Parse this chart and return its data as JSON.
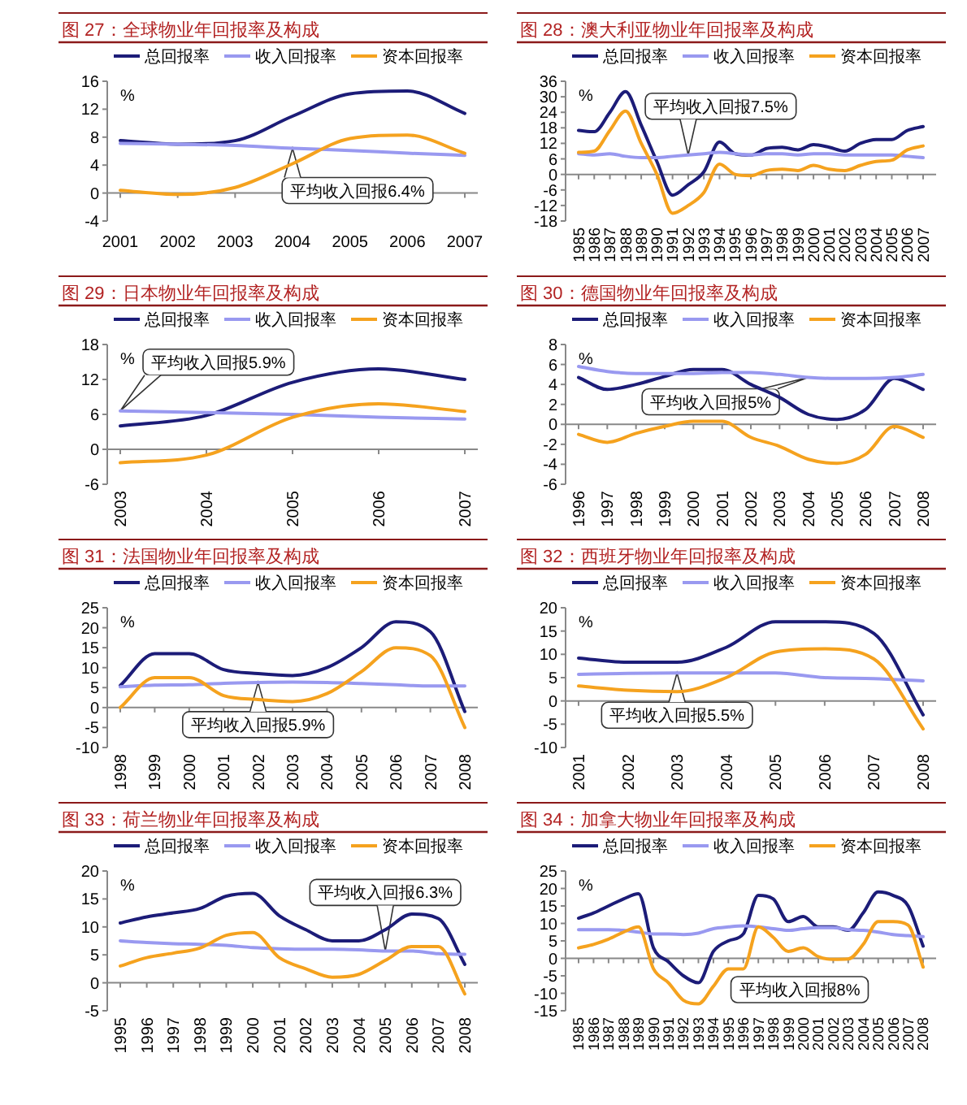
{
  "chart_data": [
    {
      "type": "line",
      "title": "图 27：全球物业年回报率及构成",
      "ylabel": "%",
      "categories": [
        "2001",
        "2002",
        "2003",
        "2004",
        "2005",
        "2006",
        "2007"
      ],
      "series": [
        {
          "name": "总回报率",
          "color": "#1c1c78",
          "values": [
            7.5,
            7.0,
            7.5,
            11,
            14.2,
            14.6,
            11.4
          ]
        },
        {
          "name": "收入回报率",
          "color": "#9999f0",
          "values": [
            7.1,
            7.0,
            6.8,
            6.4,
            6.1,
            5.7,
            5.4
          ]
        },
        {
          "name": "资本回报率",
          "color": "#f5a21e",
          "values": [
            0.4,
            -0.2,
            0.8,
            4.2,
            7.8,
            8.3,
            5.7
          ]
        }
      ],
      "ylim": [
        -4,
        16
      ],
      "yticks": [
        -4,
        0,
        4,
        8,
        12,
        16
      ],
      "legend": "top",
      "annotations": [
        {
          "text": "平均收入回报6.4%",
          "x": "2004",
          "y": 6.4
        }
      ]
    },
    {
      "type": "line",
      "title": "图 28：澳大利亚物业年回报率及构成",
      "ylabel": "%",
      "categories": [
        "1985",
        "1986",
        "1987",
        "1988",
        "1989",
        "1990",
        "1991",
        "1992",
        "1993",
        "1994",
        "1995",
        "1996",
        "1997",
        "1998",
        "1999",
        "2000",
        "2001",
        "2002",
        "2003",
        "2004",
        "2005",
        "2006",
        "2007"
      ],
      "series": [
        {
          "name": "总回报率",
          "color": "#1c1c78",
          "values": [
            17,
            16.5,
            24,
            32,
            19,
            5,
            -8,
            -4,
            1,
            12.5,
            8,
            7.5,
            10,
            10.5,
            9.5,
            11.5,
            10.5,
            9,
            12,
            13.5,
            13.5,
            17,
            18.5
          ]
        },
        {
          "name": "收入回报率",
          "color": "#9999f0",
          "values": [
            8,
            7.5,
            8,
            7,
            6.5,
            6.5,
            7,
            7.5,
            8,
            8.5,
            8,
            7.5,
            8,
            8,
            7.5,
            8,
            8,
            7.5,
            7.5,
            7.5,
            7.5,
            7,
            6.5
          ]
        },
        {
          "name": "资本回报率",
          "color": "#f5a21e",
          "values": [
            8.5,
            9,
            17,
            24.5,
            12,
            0,
            -15,
            -12,
            -7,
            4,
            0,
            -0.5,
            1.5,
            2,
            1.5,
            3.5,
            2,
            1.5,
            3.5,
            5,
            5.5,
            9.5,
            11
          ]
        }
      ],
      "ylim": [
        -18,
        36
      ],
      "yticks": [
        -18,
        -12,
        -6,
        0,
        6,
        12,
        18,
        24,
        30,
        36
      ],
      "legend": "top",
      "annotations": [
        {
          "text": "平均收入回报7.5%",
          "x": "1992",
          "y": 7.5
        }
      ]
    },
    {
      "type": "line",
      "title": "图 29：日本物业年回报率及构成",
      "ylabel": "%",
      "categories": [
        "2003",
        "2004",
        "2005",
        "2006",
        "2007"
      ],
      "series": [
        {
          "name": "总回报率",
          "color": "#1c1c78",
          "values": [
            4,
            5.8,
            11.5,
            13.8,
            12
          ]
        },
        {
          "name": "收入回报率",
          "color": "#9999f0",
          "values": [
            6.6,
            6.3,
            6.0,
            5.5,
            5.2
          ]
        },
        {
          "name": "资本回报率",
          "color": "#f5a21e",
          "values": [
            -2.3,
            -1,
            5.5,
            7.8,
            6.5
          ]
        }
      ],
      "ylim": [
        -6,
        18
      ],
      "yticks": [
        -6,
        0,
        6,
        12,
        18
      ],
      "legend": "top",
      "annotations": [
        {
          "text": "平均收入回报5.9%",
          "x": "2003",
          "y": 6.6
        }
      ]
    },
    {
      "type": "line",
      "title": "图 30：德国物业年回报率及构成",
      "ylabel": "%",
      "categories": [
        "1996",
        "1997",
        "1998",
        "1999",
        "2000",
        "2001",
        "2002",
        "2003",
        "2004",
        "2005",
        "2006",
        "2007",
        "2008"
      ],
      "series": [
        {
          "name": "总回报率",
          "color": "#1c1c78",
          "values": [
            4.7,
            3.5,
            4.0,
            4.8,
            5.5,
            5.5,
            4.0,
            2.7,
            1.0,
            0.5,
            1.5,
            4.6,
            3.5
          ]
        },
        {
          "name": "收入回报率",
          "color": "#9999f0",
          "values": [
            5.8,
            5.3,
            5.1,
            5.1,
            5.1,
            5.2,
            5.2,
            5.0,
            4.7,
            4.6,
            4.6,
            4.7,
            5.0
          ]
        },
        {
          "name": "资本回报率",
          "color": "#f5a21e",
          "values": [
            -1.0,
            -1.8,
            -0.9,
            -0.2,
            0.3,
            0.3,
            -1.3,
            -2.2,
            -3.5,
            -3.9,
            -3.0,
            -0.2,
            -1.3
          ]
        }
      ],
      "ylim": [
        -6,
        8
      ],
      "yticks": [
        -6,
        -4,
        -2,
        0,
        2,
        4,
        6,
        8
      ],
      "legend": "top",
      "annotations": [
        {
          "text": "平均收入回报5%",
          "x": "2004",
          "y": 4.7
        }
      ]
    },
    {
      "type": "line",
      "title": "图 31：法国物业年回报率及构成",
      "ylabel": "%",
      "categories": [
        "1998",
        "1999",
        "2000",
        "2001",
        "2002",
        "2003",
        "2004",
        "2005",
        "2006",
        "2007",
        "2008"
      ],
      "series": [
        {
          "name": "总回报率",
          "color": "#1c1c78",
          "values": [
            5.5,
            13.5,
            13.5,
            9.5,
            8.5,
            8,
            10,
            15,
            21.5,
            19,
            -1
          ]
        },
        {
          "name": "收入回报率",
          "color": "#9999f0",
          "values": [
            5.2,
            5.6,
            5.7,
            6.1,
            6.3,
            6.4,
            6.3,
            6.0,
            5.7,
            5.4,
            5.4
          ]
        },
        {
          "name": "资本回报率",
          "color": "#f5a21e",
          "values": [
            0,
            7.5,
            7.5,
            3,
            2,
            1.5,
            3.5,
            9,
            15,
            13,
            -5
          ]
        }
      ],
      "ylim": [
        -10,
        25
      ],
      "yticks": [
        -10,
        -5,
        0,
        5,
        10,
        15,
        20,
        25
      ],
      "legend": "top",
      "annotations": [
        {
          "text": "平均收入回报5.9%",
          "x": "2002",
          "y": 6.3
        }
      ]
    },
    {
      "type": "line",
      "title": "图 32：西班牙物业年回报率及构成",
      "ylabel": "%",
      "categories": [
        "2001",
        "2002",
        "2003",
        "2004",
        "2005",
        "2006",
        "2007",
        "2008"
      ],
      "series": [
        {
          "name": "总回报率",
          "color": "#1c1c78",
          "values": [
            9.2,
            8.3,
            8.3,
            11.5,
            17,
            17,
            14.5,
            -3
          ]
        },
        {
          "name": "收入回报率",
          "color": "#9999f0",
          "values": [
            5.7,
            5.9,
            6.0,
            6.0,
            6.0,
            5.0,
            4.8,
            4.3
          ]
        },
        {
          "name": "资本回报率",
          "color": "#f5a21e",
          "values": [
            3.2,
            2.3,
            2.0,
            5,
            10.5,
            11.2,
            9,
            -6
          ]
        }
      ],
      "ylim": [
        -10,
        20
      ],
      "yticks": [
        -10,
        -5,
        0,
        5,
        10,
        15,
        20
      ],
      "legend": "top",
      "annotations": [
        {
          "text": "平均收入回报5.5%",
          "x": "2003",
          "y": 6.0
        }
      ]
    },
    {
      "type": "line",
      "title": "图 33：荷兰物业年回报率及构成",
      "ylabel": "%",
      "categories": [
        "1995",
        "1996",
        "1997",
        "1998",
        "1999",
        "2000",
        "2001",
        "2002",
        "2003",
        "2004",
        "2005",
        "2006",
        "2007",
        "2008"
      ],
      "series": [
        {
          "name": "总回报率",
          "color": "#1c1c78",
          "values": [
            10.7,
            11.8,
            12.5,
            13.3,
            15.5,
            16,
            12,
            9.5,
            7.5,
            7.5,
            9.5,
            12.3,
            11.5,
            3.3
          ]
        },
        {
          "name": "收入回报率",
          "color": "#9999f0",
          "values": [
            7.5,
            7.2,
            7.0,
            6.9,
            6.7,
            6.3,
            6.1,
            6.0,
            6.0,
            5.9,
            5.7,
            5.7,
            5.2,
            5.1
          ]
        },
        {
          "name": "资本回报率",
          "color": "#f5a21e",
          "values": [
            3,
            4.5,
            5.3,
            6.2,
            8.5,
            9,
            4.5,
            2.5,
            1,
            1.5,
            4,
            6.5,
            6.5,
            -2
          ]
        }
      ],
      "ylim": [
        -5,
        20
      ],
      "yticks": [
        -5,
        0,
        5,
        10,
        15,
        20
      ],
      "legend": "top",
      "annotations": [
        {
          "text": "平均收入回报6.3%",
          "x": "2005",
          "y": 5.7
        }
      ]
    },
    {
      "type": "line",
      "title": "图 34：加拿大物业年回报率及构成",
      "ylabel": "%",
      "categories": [
        "1985",
        "1986",
        "1987",
        "1988",
        "1989",
        "1990",
        "1991",
        "1992",
        "1993",
        "1994",
        "1995",
        "1996",
        "1997",
        "1998",
        "1999",
        "2000",
        "2001",
        "2002",
        "2003",
        "2004",
        "2005",
        "2006",
        "2007",
        "2008"
      ],
      "series": [
        {
          "name": "总回报率",
          "color": "#1c1c78",
          "values": [
            11.5,
            13,
            15,
            17,
            18.5,
            3,
            -1,
            -5,
            -7,
            2,
            5,
            7,
            18,
            17,
            10.5,
            12,
            9,
            9,
            8,
            13,
            19,
            18,
            15,
            3.5
          ]
        },
        {
          "name": "收入回报率",
          "color": "#9999f0",
          "values": [
            8.2,
            8.2,
            8.2,
            8,
            7.5,
            7,
            7,
            6.8,
            7.2,
            8.5,
            9,
            9.3,
            9,
            8.5,
            8,
            8.5,
            8.8,
            8.8,
            8.2,
            8,
            7.5,
            6.8,
            6.5,
            6.2
          ]
        },
        {
          "name": "资本回报率",
          "color": "#f5a21e",
          "values": [
            3,
            4,
            5.5,
            7.5,
            9,
            -3,
            -7,
            -12,
            -13,
            -8,
            -3,
            -3,
            9,
            6,
            2,
            3,
            0.5,
            -0.3,
            -0.2,
            4,
            10.5,
            10.5,
            9.5,
            -2.5
          ]
        }
      ],
      "ylim": [
        -15,
        25
      ],
      "yticks": [
        -15,
        -10,
        -5,
        0,
        5,
        10,
        15,
        20,
        25
      ],
      "legend": "top",
      "annotations": [
        "平均收入回报8%"
      ]
    }
  ]
}
